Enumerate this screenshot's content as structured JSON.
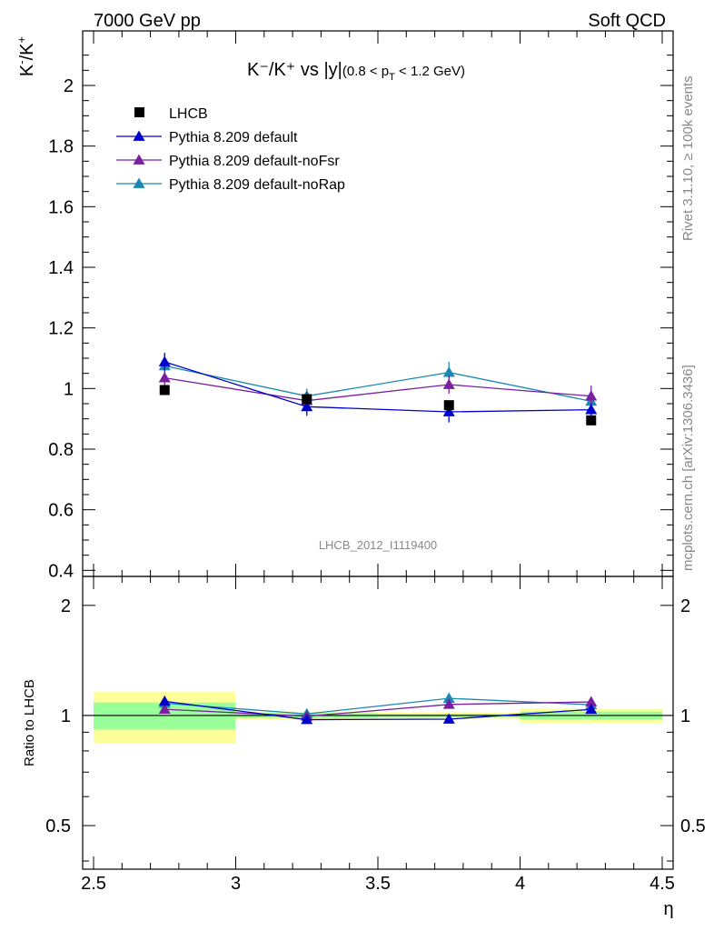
{
  "header": {
    "left_label": "7000 GeV pp",
    "right_label": "Soft QCD"
  },
  "side_text": {
    "rivet": "Rivet 3.1.10, ≥ 100k events",
    "source": "mcplots.cern.ch [arXiv:1306.3436]"
  },
  "colors": {
    "lhcb": "#000000",
    "default": "#0000cc",
    "noFsr": "#7a1fa2",
    "noRap": "#1a88b0",
    "band_inner": "#99ff99",
    "band_outer": "#ffff99"
  },
  "chart_data": [
    {
      "type": "scatter",
      "title": "K⁻/K⁺ vs |y|(0.8 < p_T < 1.2 GeV)",
      "title_main": "K⁻/K⁺ vs |y|",
      "title_cut": "(0.8 < p",
      "title_cut_sub": "T",
      "title_cut_end": " < 1.2 GeV)",
      "ylabel": "K⁻/K⁺",
      "ylabel_base1": "K",
      "ylabel_sup1": "-",
      "ylabel_base2": "/K",
      "ylabel_sup2": "+",
      "watermark": "LHCB_2012_I1119400",
      "xlim": [
        2.5,
        4.5
      ],
      "ylim": [
        0.38,
        2.18
      ],
      "y_ticks": [
        0.4,
        0.6,
        0.8,
        1,
        1.2,
        1.4,
        1.6,
        1.8,
        2
      ],
      "y_tick_labels": [
        "0.4",
        "0.6",
        "0.8",
        "1",
        "1.2",
        "1.4",
        "1.6",
        "1.8",
        "2"
      ],
      "legend_position": "top-left",
      "series": [
        {
          "name": "LHCB",
          "marker": "square",
          "color_key": "lhcb",
          "x": [
            2.75,
            3.25,
            3.75,
            4.25
          ],
          "y": [
            0.995,
            0.965,
            0.945,
            0.895
          ],
          "err": [
            0.0,
            0.0,
            0.0,
            0.0
          ],
          "line": false
        },
        {
          "name": "Pythia 8.209 default",
          "marker": "triangle",
          "color_key": "default",
          "x": [
            2.75,
            3.25,
            3.75,
            4.25
          ],
          "y": [
            1.088,
            0.94,
            0.923,
            0.93
          ],
          "err": [
            0.03,
            0.03,
            0.035,
            0.02
          ],
          "line": true
        },
        {
          "name": "Pythia 8.209 default-noFsr",
          "marker": "triangle",
          "color_key": "noFsr",
          "x": [
            2.75,
            3.25,
            3.75,
            4.25
          ],
          "y": [
            1.035,
            0.96,
            1.013,
            0.975
          ],
          "err": [
            0.025,
            0.03,
            0.03,
            0.035
          ],
          "line": true
        },
        {
          "name": "Pythia 8.209 default-noRap",
          "marker": "triangle",
          "color_key": "noRap",
          "x": [
            2.75,
            3.25,
            3.75,
            4.25
          ],
          "y": [
            1.075,
            0.975,
            1.053,
            0.958
          ],
          "err": [
            0.035,
            0.025,
            0.035,
            0.03
          ],
          "line": true
        }
      ]
    },
    {
      "type": "scatter",
      "title": "",
      "ylabel": "Ratio to LHCB",
      "xlabel": "η",
      "xlim": [
        2.5,
        4.5
      ],
      "ylim": [
        0.38,
        2.4
      ],
      "y_scale": "log",
      "y_ticks": [
        0.5,
        1,
        2
      ],
      "y_tick_labels": [
        "0.5",
        "1",
        "2"
      ],
      "x_ticks": [
        2.5,
        3,
        3.5,
        4,
        4.5
      ],
      "x_tick_labels": [
        "2.5",
        "3",
        "3.5",
        "4",
        "4.5"
      ],
      "reference_line": 1,
      "bands": [
        {
          "x0": 2.5,
          "x1": 3.0,
          "inner": [
            0.915,
            1.085
          ],
          "outer": [
            0.838,
            1.162
          ]
        },
        {
          "x0": 3.0,
          "x1": 3.5,
          "inner": [
            0.985,
            1.015
          ],
          "outer": [
            0.975,
            1.025
          ]
        },
        {
          "x0": 3.5,
          "x1": 4.0,
          "inner": [
            0.99,
            1.01
          ],
          "outer": [
            0.98,
            1.02
          ]
        },
        {
          "x0": 4.0,
          "x1": 4.5,
          "inner": [
            0.975,
            1.025
          ],
          "outer": [
            0.955,
            1.045
          ]
        }
      ],
      "series": [
        {
          "name": "Pythia 8.209 default",
          "color_key": "default",
          "x": [
            2.75,
            3.25,
            3.75,
            4.25
          ],
          "y": [
            1.093,
            0.974,
            0.977,
            1.039
          ],
          "err": [
            0.03,
            0.02,
            0.025,
            0.02
          ]
        },
        {
          "name": "Pythia 8.209 default-noFsr",
          "color_key": "noFsr",
          "x": [
            2.75,
            3.25,
            3.75,
            4.25
          ],
          "y": [
            1.04,
            0.995,
            1.072,
            1.089
          ],
          "err": [
            0.025,
            0.025,
            0.02,
            0.03
          ]
        },
        {
          "name": "Pythia 8.209 default-noRap",
          "color_key": "noRap",
          "x": [
            2.75,
            3.25,
            3.75,
            4.25
          ],
          "y": [
            1.08,
            1.01,
            1.114,
            1.07
          ],
          "err": [
            0.03,
            0.02,
            0.02,
            0.025
          ]
        }
      ]
    }
  ]
}
